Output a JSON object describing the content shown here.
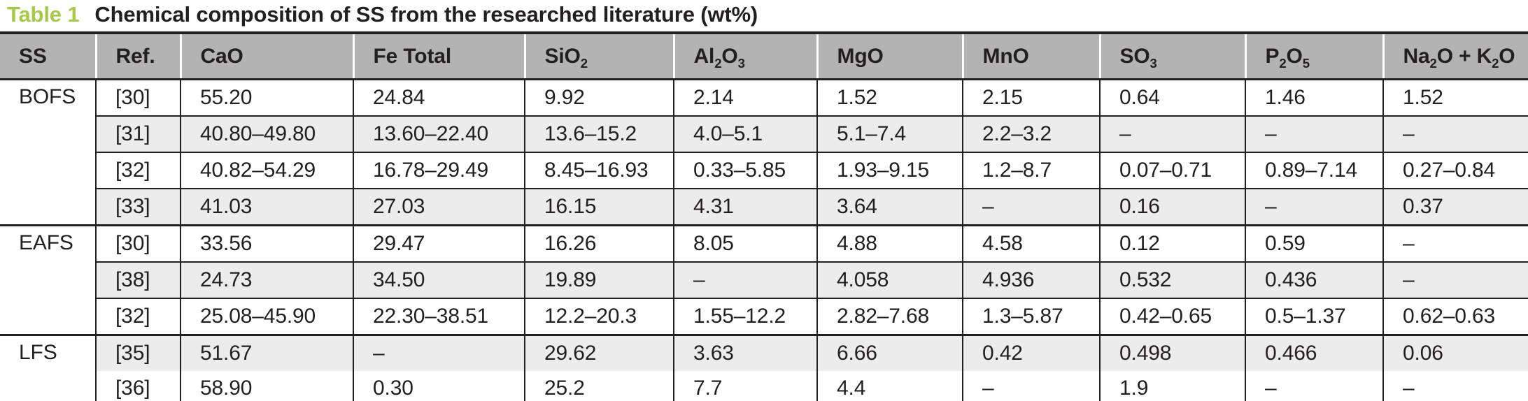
{
  "caption": {
    "label": "Table 1",
    "text": "Chemical composition of SS from the researched literature (wt%)"
  },
  "colors": {
    "caption_accent_green": "#a5ca45",
    "header_bg": "#b3b3b3",
    "stripe_bg": "#ececec",
    "rule": "#231f20",
    "text": "#231f20"
  },
  "table": {
    "columns": [
      "SS",
      "Ref.",
      "CaO",
      "Fe Total",
      "SiO2",
      "Al2O3",
      "MgO",
      "MnO",
      "SO3",
      "P2O5",
      "Na2O + K2O"
    ],
    "groups": [
      {
        "ss": "BOFS",
        "rows": [
          {
            "ref": "[30]",
            "values": [
              "55.20",
              "24.84",
              "9.92",
              "2.14",
              "1.52",
              "2.15",
              "0.64",
              "1.46",
              "1.52"
            ]
          },
          {
            "ref": "[31]",
            "values": [
              "40.80–49.80",
              "13.60–22.40",
              "13.6–15.2",
              "4.0–5.1",
              "5.1–7.4",
              "2.2–3.2",
              "–",
              "–",
              "–"
            ]
          },
          {
            "ref": "[32]",
            "values": [
              "40.82–54.29",
              "16.78–29.49",
              "8.45–16.93",
              "0.33–5.85",
              "1.93–9.15",
              "1.2–8.7",
              "0.07–0.71",
              "0.89–7.14",
              "0.27–0.84"
            ]
          },
          {
            "ref": "[33]",
            "values": [
              "41.03",
              "27.03",
              "16.15",
              "4.31",
              "3.64",
              "–",
              "0.16",
              "–",
              "0.37"
            ]
          }
        ]
      },
      {
        "ss": "EAFS",
        "rows": [
          {
            "ref": "[30]",
            "values": [
              "33.56",
              "29.47",
              "16.26",
              "8.05",
              "4.88",
              "4.58",
              "0.12",
              "0.59",
              "–"
            ]
          },
          {
            "ref": "[38]",
            "values": [
              "24.73",
              "34.50",
              "19.89",
              "–",
              "4.058",
              "4.936",
              "0.532",
              "0.436",
              "–"
            ]
          },
          {
            "ref": "[32]",
            "values": [
              "25.08–45.90",
              "22.30–38.51",
              "12.2–20.3",
              "1.55–12.2",
              "2.82–7.68",
              "1.3–5.87",
              "0.42–0.65",
              "0.5–1.37",
              "0.62–0.63"
            ]
          }
        ]
      },
      {
        "ss": "LFS",
        "rows": [
          {
            "ref": "[35]",
            "values": [
              "51.67",
              "–",
              "29.62",
              "3.63",
              "6.66",
              "0.42",
              "0.498",
              "0.466",
              "0.06"
            ]
          },
          {
            "ref": "[36]",
            "values": [
              "58.90",
              "0.30",
              "25.2",
              "7.7",
              "4.4",
              "–",
              "1.9",
              "–",
              "–"
            ],
            "no_rule_above": true
          }
        ]
      }
    ]
  }
}
